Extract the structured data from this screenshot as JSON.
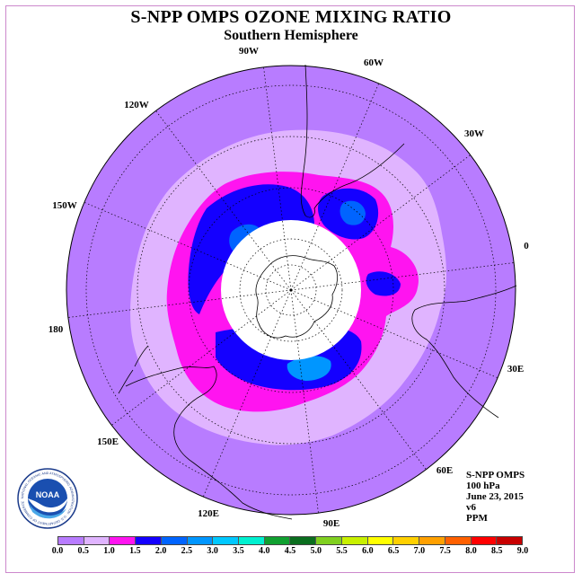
{
  "title": "S-NPP OMPS OZONE MIXING RATIO",
  "subtitle": "Southern Hemisphere",
  "longitude_labels": [
    "90W",
    "60W",
    "30W",
    "0",
    "30E",
    "60E",
    "90E",
    "120E",
    "150E",
    "180",
    "150W",
    "120W"
  ],
  "info": {
    "product": "S-NPP OMPS",
    "level": "100 hPa",
    "date": "June 23, 2015",
    "version": "v6",
    "units": "PPM"
  },
  "logo": {
    "text": "NOAA",
    "ring_text": "NATIONAL OCEANIC AND ATMOSPHERIC ADMINISTRATION · U.S. DEPARTMENT OF COMMERCE"
  },
  "colorbar": {
    "labels": [
      "0.0",
      "0.5",
      "1.0",
      "1.5",
      "2.0",
      "2.5",
      "3.0",
      "3.5",
      "4.0",
      "4.5",
      "5.0",
      "5.5",
      "6.0",
      "6.5",
      "7.0",
      "7.5",
      "8.0",
      "8.5",
      "9.0"
    ],
    "colors": [
      "#b87cff",
      "#e0b4ff",
      "#ff14f0",
      "#1400ff",
      "#0064ff",
      "#0096ff",
      "#00c8ff",
      "#00f0d0",
      "#10a030",
      "#0a6e1e",
      "#80d020",
      "#c8f000",
      "#ffff00",
      "#ffd000",
      "#ffa000",
      "#ff6000",
      "#ff0000",
      "#c80000",
      "#8b5a2b"
    ]
  },
  "map_colors": {
    "background": "#b87cff",
    "level_0_5": "#e0b4ff",
    "level_1_0": "#ff14f0",
    "level_1_5": "#1400ff",
    "level_2_0": "#0064ff",
    "level_2_5": "#0096ff",
    "no_data": "#ffffff",
    "coast": "#000000",
    "grid": "#000000"
  }
}
